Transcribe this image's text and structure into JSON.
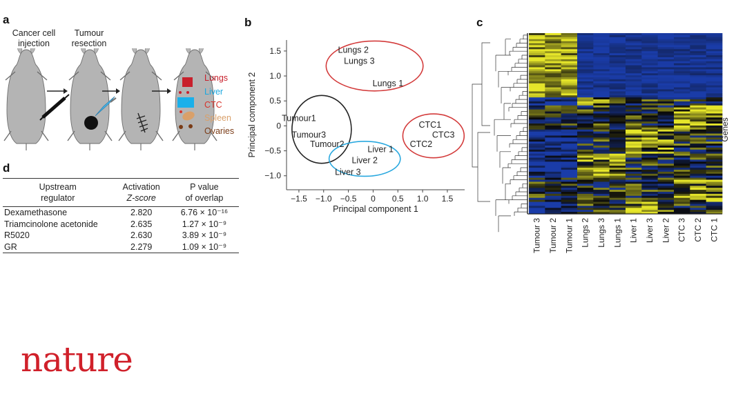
{
  "panel_a": {
    "label": "a",
    "caption_injection": [
      "Cancer cell",
      "injection"
    ],
    "caption_resection": [
      "Tumour",
      "resection"
    ],
    "organs": [
      {
        "name": "Lungs",
        "color": "#c8202c"
      },
      {
        "name": "Liver",
        "color": "#1aa7e0"
      },
      {
        "name": "CTC",
        "color": "#d8322a"
      },
      {
        "name": "Spleen",
        "color": "#d9a06a"
      },
      {
        "name": "Ovaries",
        "color": "#7a3b16"
      }
    ]
  },
  "panel_b": {
    "label": "b"
  },
  "panel_c": {
    "label": "c",
    "row_label": "Genes",
    "columns": [
      "Tumour 3",
      "Tumour 2",
      "Tumour 1",
      "Lungs 2",
      "Lungs 3",
      "Lungs 1",
      "Liver 1",
      "Liver 3",
      "Liver 2",
      "CTC 3",
      "CTC 2",
      "CTC 1"
    ],
    "colors": {
      "low": "#1a3ca8",
      "mid": "#0a0a0a",
      "high": "#e6e62a"
    }
  },
  "panel_d": {
    "label": "d",
    "headers": {
      "regulator": [
        "Upstream",
        "regulator"
      ],
      "zscore": [
        "Activation",
        "Z-score"
      ],
      "pvalue": [
        "P value",
        "of overlap"
      ]
    },
    "rows": [
      {
        "regulator": "Dexamethasone",
        "zscore": "2.820",
        "pvalue": "6.76 × 10⁻¹⁶"
      },
      {
        "regulator": "Triamcinolone acetonide",
        "zscore": "2.635",
        "pvalue": "1.27 × 10⁻⁹"
      },
      {
        "regulator": "R5020",
        "zscore": "2.630",
        "pvalue": "3.89 × 10⁻⁹"
      },
      {
        "regulator": "GR",
        "zscore": "2.279",
        "pvalue": "1.09 × 10⁻⁹"
      }
    ]
  },
  "footer": {
    "logo": "nature"
  },
  "chart_data": {
    "type": "scatter",
    "title": "",
    "xlabel": "Principal component 1",
    "ylabel": "Principal component 2",
    "xlim": [
      -1.75,
      1.85
    ],
    "ylim": [
      -1.28,
      1.72
    ],
    "xticks": [
      -1.5,
      -1.0,
      -0.5,
      0,
      0.5,
      1.0,
      1.5
    ],
    "xtick_labels": [
      "−1.5",
      "−1.0",
      "−0.5",
      "0",
      "0.5",
      "1.0",
      "1.5"
    ],
    "yticks": [
      -1.0,
      -0.5,
      0,
      0.5,
      1.0,
      1.5
    ],
    "ytick_labels": [
      "−1.0",
      "−0.5",
      "0",
      "0.5",
      "1.0",
      "1.5"
    ],
    "grid": false,
    "points": [
      {
        "label": "Lungs 2",
        "x": -0.4,
        "y": 1.52
      },
      {
        "label": "Lungs 3",
        "x": -0.28,
        "y": 1.3
      },
      {
        "label": "Lungs 1",
        "x": 0.3,
        "y": 0.85
      },
      {
        "label": "Tumour1",
        "x": -1.5,
        "y": 0.15
      },
      {
        "label": "Tumour3",
        "x": -1.3,
        "y": -0.18
      },
      {
        "label": "Tumour2",
        "x": -0.93,
        "y": -0.37
      },
      {
        "label": "Liver 1",
        "x": 0.15,
        "y": -0.47
      },
      {
        "label": "Liver 2",
        "x": -0.17,
        "y": -0.69
      },
      {
        "label": "Liver 3",
        "x": -0.51,
        "y": -0.93
      },
      {
        "label": "CTC1",
        "x": 1.15,
        "y": 0.02
      },
      {
        "label": "CTC3",
        "x": 1.42,
        "y": -0.18
      },
      {
        "label": "CTC2",
        "x": 0.97,
        "y": -0.37
      }
    ],
    "groups": [
      {
        "name": "Lungs",
        "color": "#d33a3a",
        "cx": 0.03,
        "cy": 1.2,
        "rx": 0.98,
        "ry": 0.5
      },
      {
        "name": "Tumour",
        "color": "#222222",
        "cx": -1.04,
        "cy": -0.07,
        "rx": 0.6,
        "ry": 0.68
      },
      {
        "name": "Liver",
        "color": "#29a8df",
        "cx": -0.17,
        "cy": -0.66,
        "rx": 0.72,
        "ry": 0.35
      },
      {
        "name": "CTC",
        "color": "#d33a3a",
        "cx": 1.22,
        "cy": -0.2,
        "rx": 0.62,
        "ry": 0.44
      }
    ]
  }
}
